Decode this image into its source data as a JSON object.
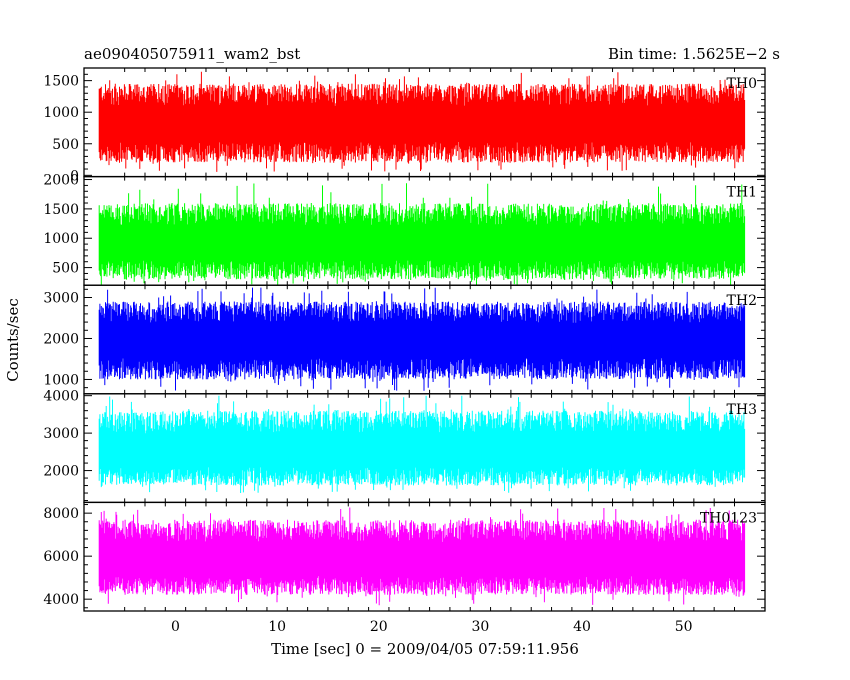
{
  "header": {
    "left_title": "ae090405075911_wam2_bst",
    "right_title": "Bin time: 1.5625E−2 s"
  },
  "chart_data": {
    "type": "line",
    "xlabel": "Time [sec] 0 = 2009/04/05 07:59:11.956",
    "ylabel": "Counts/sec",
    "xlim": [
      -9,
      58
    ],
    "x_ticks": [
      0,
      10,
      20,
      30,
      40,
      50
    ],
    "x_data_range": [
      -7.5,
      56
    ],
    "bin_time": 0.015625,
    "panels": [
      {
        "name": "TH0",
        "color": "#ff0000",
        "ylim": [
          -20,
          1700
        ],
        "y_ticks": [
          0,
          500,
          1000,
          1500
        ],
        "mean": 800,
        "typical_low": 200,
        "typical_high": 1450,
        "min": 50,
        "max": 1650
      },
      {
        "name": "TH1",
        "color": "#00ff00",
        "ylim": [
          200,
          2050
        ],
        "y_ticks": [
          500,
          1000,
          1500,
          2000
        ],
        "mean": 900,
        "typical_low": 300,
        "typical_high": 1600,
        "min": 200,
        "max": 1950
      },
      {
        "name": "TH2",
        "color": "#0000ff",
        "ylim": [
          650,
          3300
        ],
        "y_ticks": [
          1000,
          2000,
          3000
        ],
        "mean": 1950,
        "typical_low": 1000,
        "typical_high": 2900,
        "min": 700,
        "max": 3250
      },
      {
        "name": "TH3",
        "color": "#00ffff",
        "ylim": [
          1150,
          4050
        ],
        "y_ticks": [
          2000,
          3000,
          4000
        ],
        "mean": 2500,
        "typical_low": 1600,
        "typical_high": 3600,
        "min": 1400,
        "max": 4000
      },
      {
        "name": "TH0123",
        "color": "#ff00ff",
        "ylim": [
          3450,
          8500
        ],
        "y_ticks": [
          4000,
          6000,
          8000
        ],
        "mean": 5800,
        "typical_low": 4200,
        "typical_high": 7700,
        "min": 3700,
        "max": 8300
      }
    ]
  }
}
